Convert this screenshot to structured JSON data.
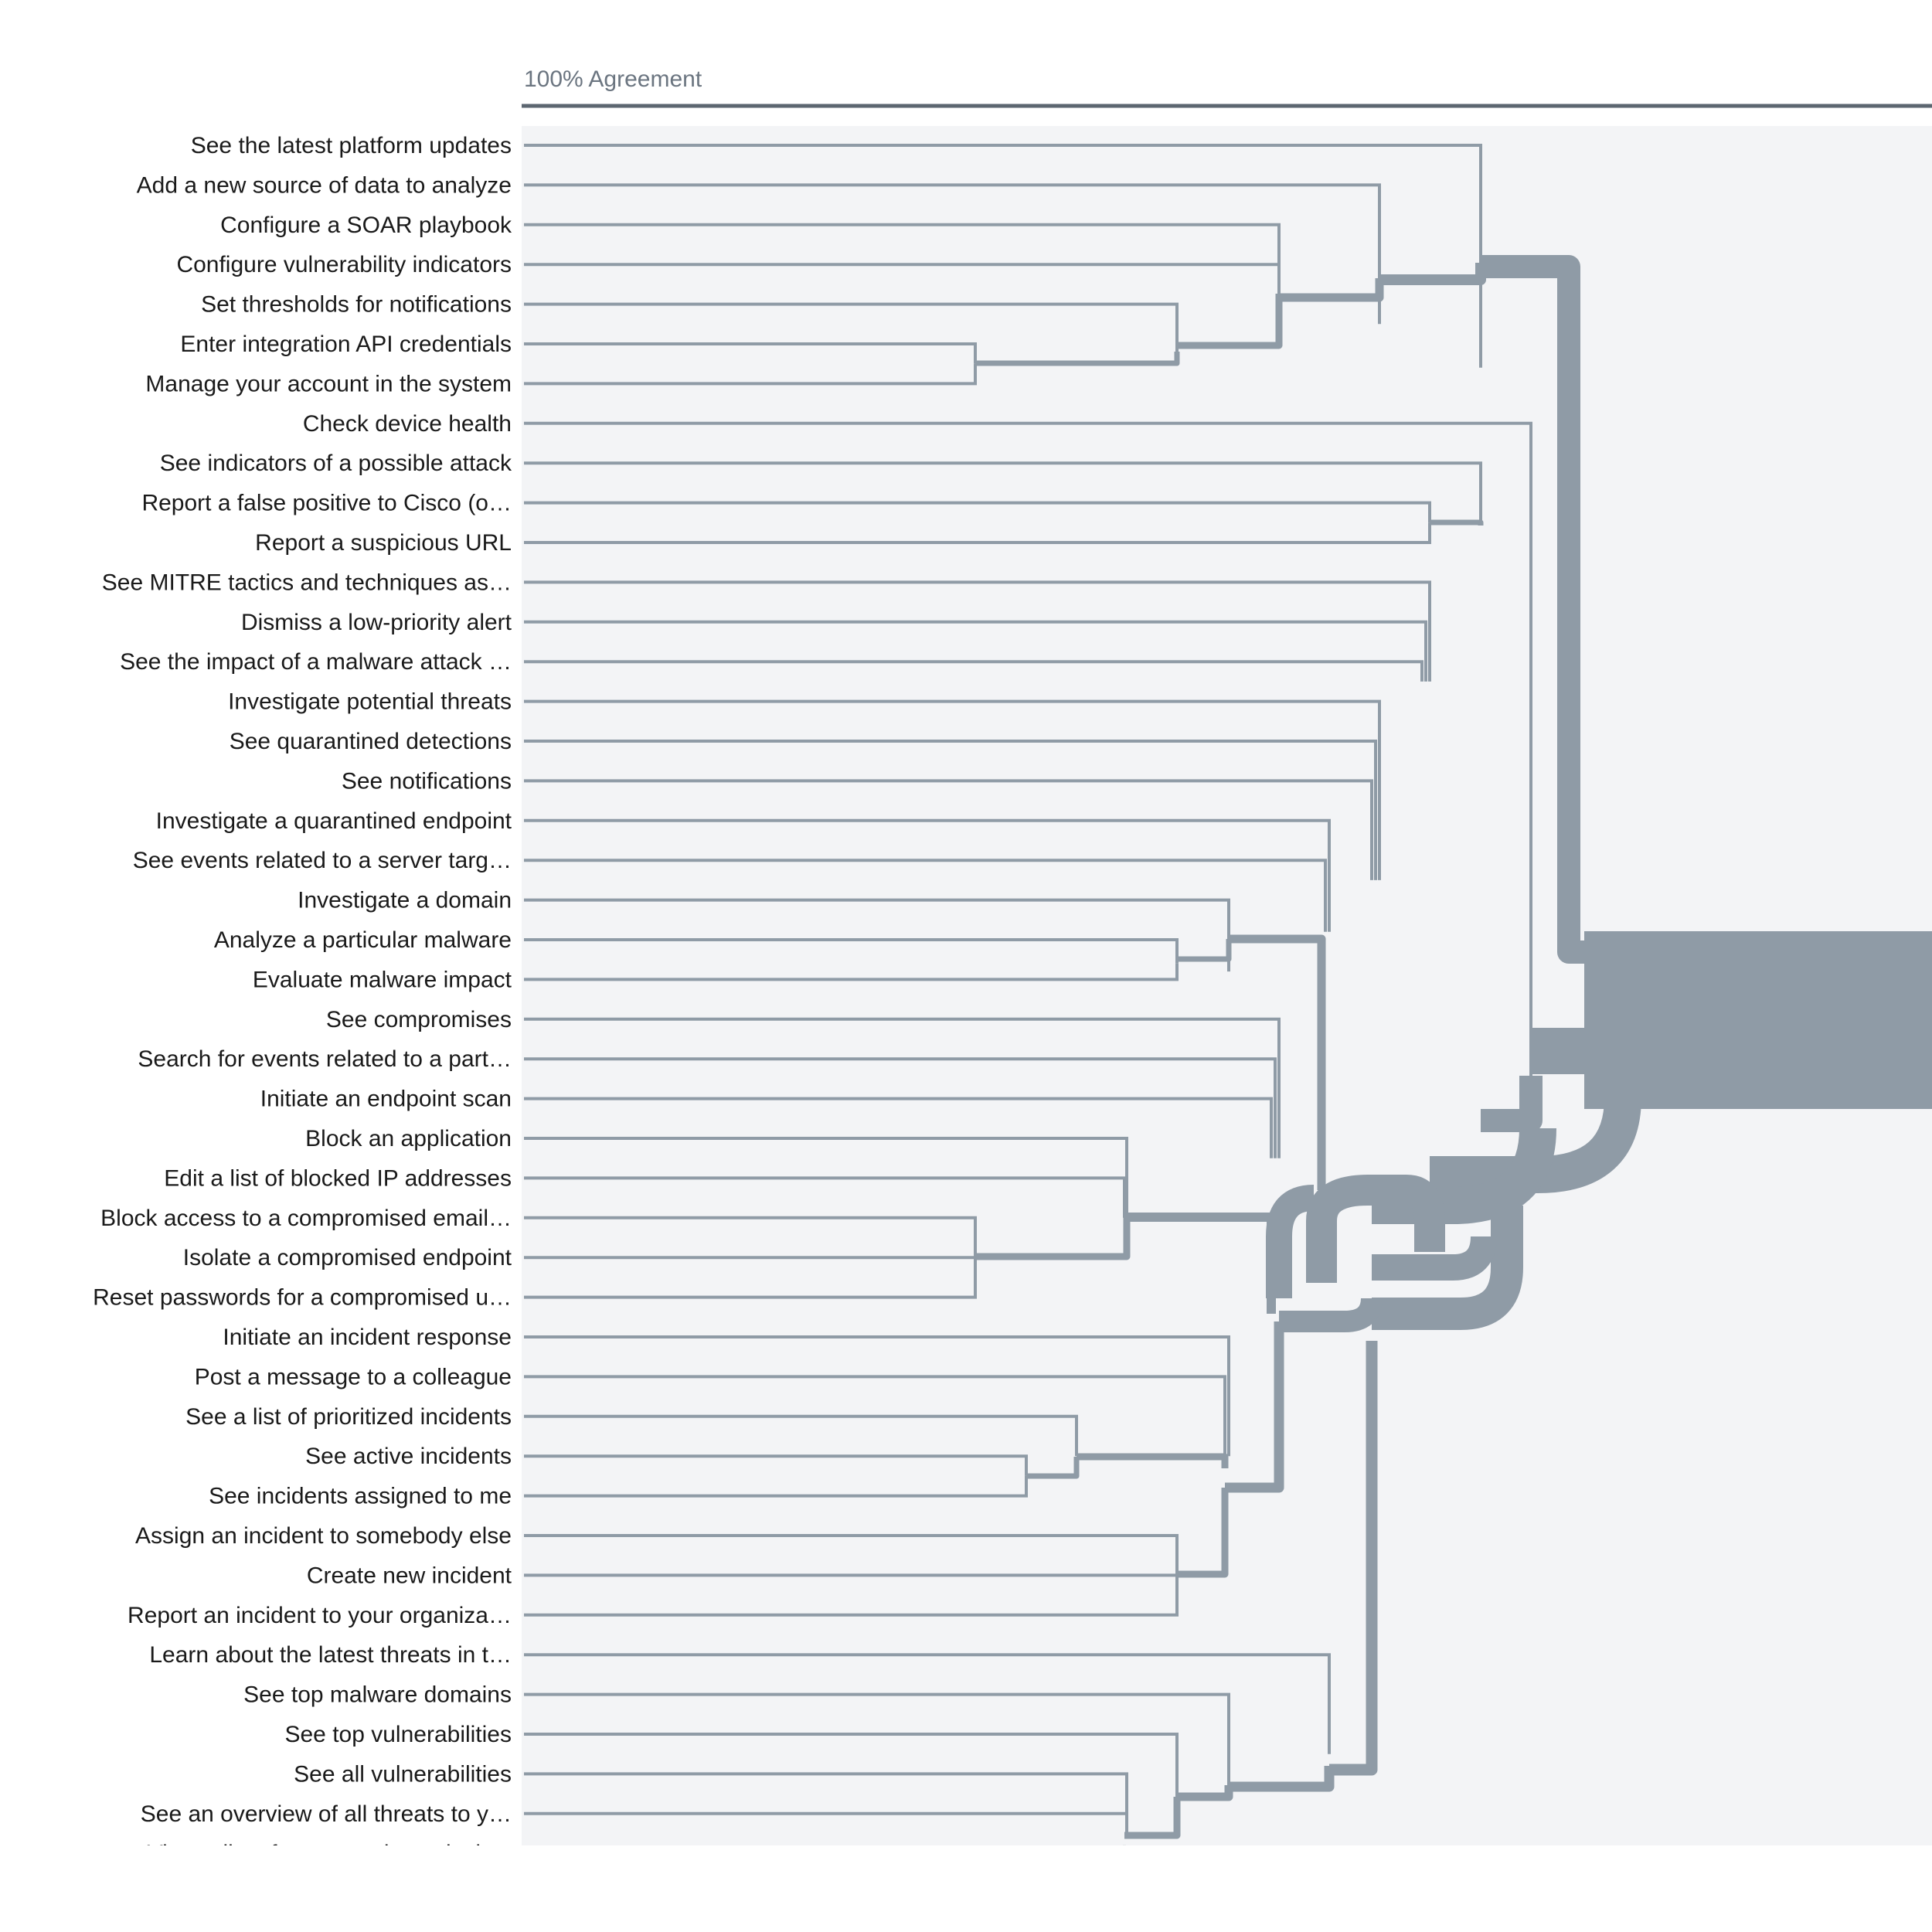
{
  "chart_data": {
    "type": "dendrogram",
    "scale_label": "100% Agreement",
    "colors": {
      "branch": "#8f9ba6",
      "axis": "#5c6670",
      "panel": "#f3f4f6",
      "label": "#1a1a1a",
      "scale_text": "#6b7580"
    },
    "leaves": [
      "See the latest platform updates",
      "Add a new source of data to analyze",
      "Configure a SOAR playbook",
      "Configure vulnerability indicators",
      "Set thresholds for notifications",
      "Enter integration API credentials",
      "Manage your account in the system",
      "Check device health",
      "See indicators of a possible attack",
      "Report a false positive to Cisco (o…",
      "Report a suspicious URL",
      "See MITRE tactics and techniques as…",
      "Dismiss a low-priority alert",
      "See the impact of a malware attack …",
      "Investigate potential threats",
      "See quarantined detections",
      "See notifications",
      "Investigate a quarantined endpoint",
      "See events related to a server targ…",
      "Investigate a domain",
      "Analyze a particular malware",
      "Evaluate malware impact",
      "See compromises",
      "Search for events related to a part…",
      "Initiate an endpoint scan",
      "Block an application",
      "Edit a list of blocked IP addresses",
      "Block access to a compromised email…",
      "Isolate a compromised endpoint",
      "Reset passwords for a compromised u…",
      "Initiate an incident response",
      "Post a message to a colleague",
      "See a list of prioritized incidents",
      "See active incidents",
      "See incidents assigned to me",
      "Assign an incident to somebody else",
      "Create new incident",
      "Report an incident to your organiza…",
      "Learn about the latest threats in t…",
      "See top malware domains",
      "See top vulnerabilities",
      "See all vulnerabilities",
      "See an overview of all threats to y…",
      "View a list of suspected attacks b…"
    ]
  }
}
